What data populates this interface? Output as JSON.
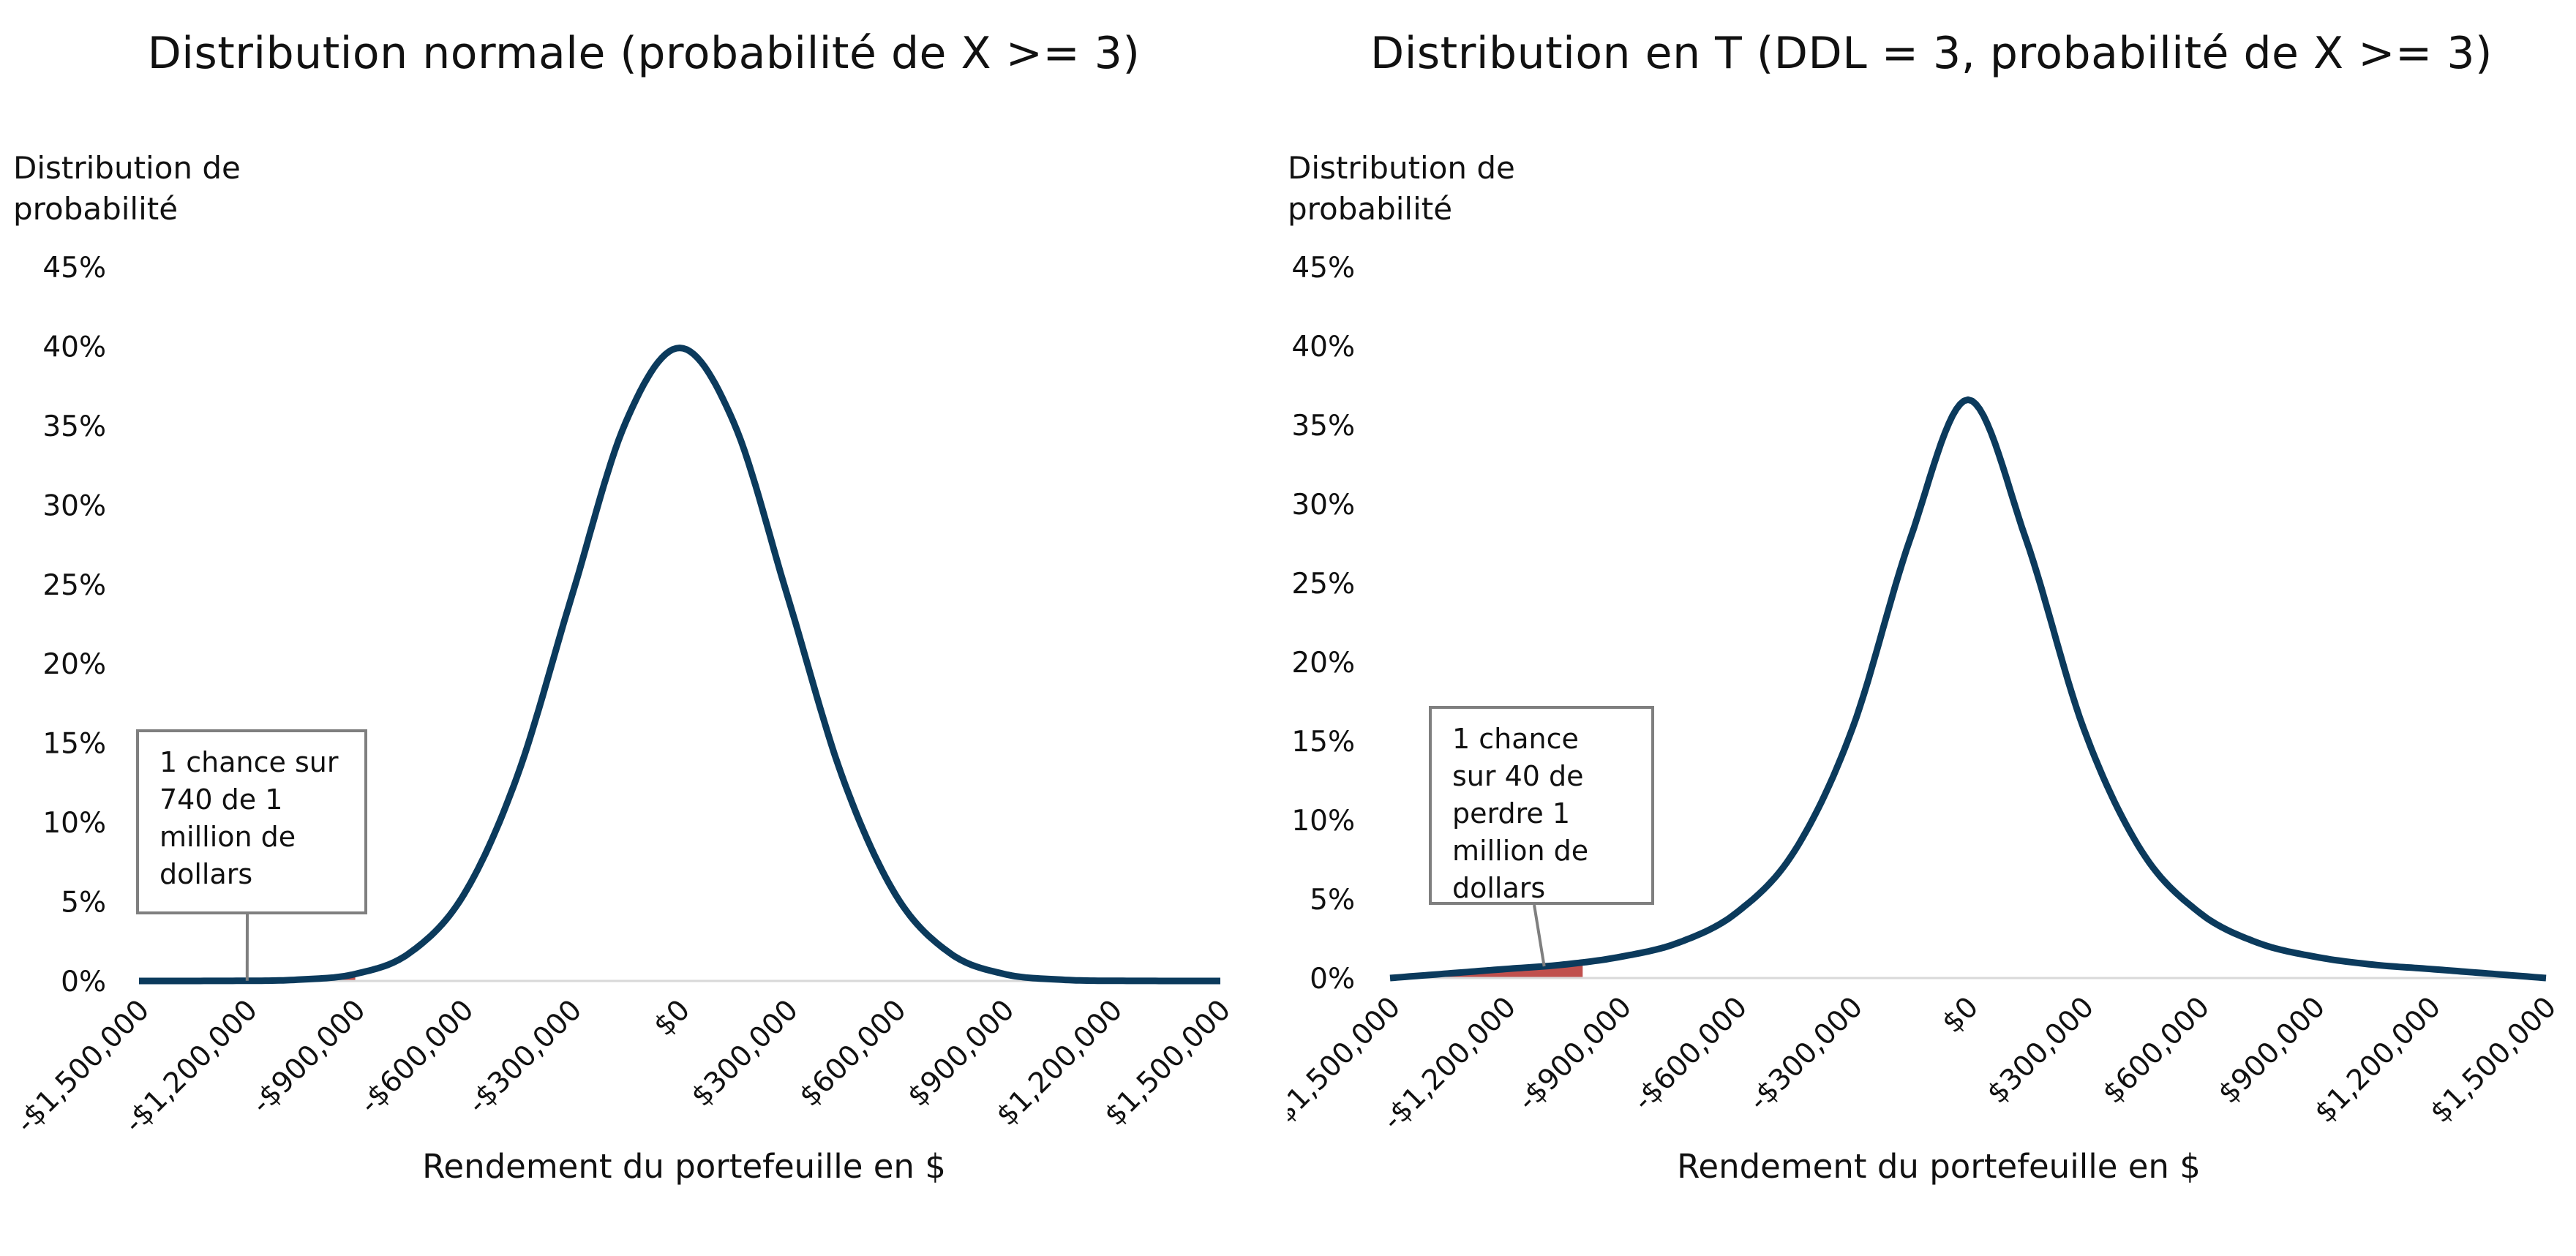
{
  "chart_data": [
    {
      "type": "area",
      "title": "Distribution normale (probabilité de X >= 3)",
      "ylabel": "Distribution de probabilité",
      "xlabel": "Rendement du portefeuille en $",
      "xlim": [
        -1500000,
        1500000
      ],
      "ylim": [
        0,
        0.45
      ],
      "yticks": [
        "0%",
        "5%",
        "10%",
        "15%",
        "20%",
        "25%",
        "30%",
        "35%",
        "40%",
        "45%"
      ],
      "xticks": [
        "-$1,500,000",
        "-$1,200,000",
        "-$900,000",
        "-$600,000",
        "-$300,000",
        "$0",
        "$300,000",
        "$600,000",
        "$900,000",
        "$1,200,000",
        "$1,500,000"
      ],
      "series": [
        {
          "color": "#0b3a5c",
          "x": [
            -1500000,
            -1200000,
            -1050000,
            -900000,
            -750000,
            -600000,
            -450000,
            -300000,
            -150000,
            0,
            150000,
            300000,
            450000,
            600000,
            750000,
            900000,
            1050000,
            1200000,
            1500000
          ],
          "y": [
            0.0,
            0.0001,
            0.0009,
            0.0044,
            0.0175,
            0.054,
            0.1295,
            0.242,
            0.352,
            0.399,
            0.352,
            0.242,
            0.1295,
            0.054,
            0.0175,
            0.0044,
            0.0009,
            0.0001,
            0.0
          ]
        }
      ],
      "shaded_region": {
        "x": [
          -1500000,
          -900000
        ],
        "color": "#c0504d"
      },
      "annotation": {
        "text": "1 chance sur 740 de  1 million de dollars",
        "x": -1200000
      }
    },
    {
      "type": "area",
      "title": "Distribution en T (DDL = 3, probabilité de X >= 3)",
      "ylabel": "Distribution de probabilité",
      "xlabel": "Rendement du portefeuille en $",
      "xlim": [
        -1500000,
        1500000
      ],
      "ylim": [
        0,
        0.45
      ],
      "yticks": [
        "0%",
        "5%",
        "10%",
        "15%",
        "20%",
        "25%",
        "30%",
        "35%",
        "40%",
        "45%"
      ],
      "xticks": [
        "-$1,500,000",
        "-$1,200,000",
        "-$900,000",
        "-$600,000",
        "-$300,000",
        "$0",
        "$300,000",
        "$600,000",
        "$900,000",
        "$1,200,000",
        "$1,500,000"
      ],
      "series": [
        {
          "color": "#0b3a5c",
          "x": [
            -1500000,
            -1200000,
            -1050000,
            -900000,
            -750000,
            -600000,
            -450000,
            -300000,
            -150000,
            0,
            150000,
            300000,
            450000,
            600000,
            750000,
            900000,
            1050000,
            1200000,
            1500000
          ],
          "y": [
            0.0,
            0.0057,
            0.0085,
            0.0135,
            0.0225,
            0.0415,
            0.0805,
            0.158,
            0.278,
            0.366,
            0.278,
            0.158,
            0.0805,
            0.0415,
            0.0225,
            0.0135,
            0.0085,
            0.0057,
            0.0
          ]
        }
      ],
      "shaded_region": {
        "x": [
          -1500000,
          -1000000
        ],
        "color": "#c0504d"
      },
      "annotation": {
        "text": "1 chance sur 40 de perdre 1 million de dollars",
        "x": -1100000
      }
    }
  ]
}
